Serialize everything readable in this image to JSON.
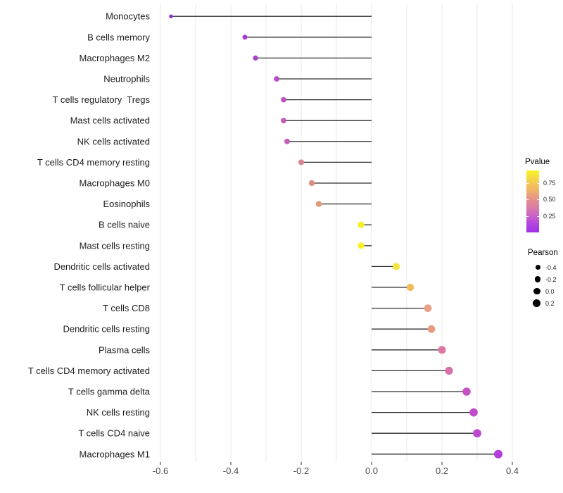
{
  "chart_data": {
    "type": "lollipop",
    "orientation": "horizontal",
    "title": "",
    "xlabel": "",
    "ylabel": "",
    "xlim": [
      -0.616,
      0.424
    ],
    "x_ticks": [
      -0.6,
      -0.4,
      -0.2,
      0.0,
      0.2,
      0.4
    ],
    "x_tick_labels": [
      "-0.6",
      "-0.4",
      "-0.2",
      "0.0",
      "0.2",
      "0.4"
    ],
    "gridlines": {
      "vertical_step": 0.1,
      "from": -0.6,
      "to": 0.4,
      "color": "#eaeaea",
      "horizontal": false
    },
    "stem_color": "#2e2e2e",
    "points": [
      {
        "label": "Monocytes",
        "pearson": -0.57,
        "pvalue_color": "#8930d8"
      },
      {
        "label": "B cells memory",
        "pearson": -0.36,
        "pvalue_color": "#a53ad2"
      },
      {
        "label": "Macrophages M2",
        "pearson": -0.33,
        "pvalue_color": "#ab40cf"
      },
      {
        "label": "Neutrophils",
        "pearson": -0.27,
        "pvalue_color": "#bc4ec5"
      },
      {
        "label": "T cells regulatory  Tregs",
        "pearson": -0.25,
        "pvalue_color": "#c154c0"
      },
      {
        "label": "Mast cells activated",
        "pearson": -0.25,
        "pvalue_color": "#c45abc"
      },
      {
        "label": "NK cells activated",
        "pearson": -0.24,
        "pvalue_color": "#c65fb9"
      },
      {
        "label": "T cells CD4 memory resting",
        "pearson": -0.2,
        "pvalue_color": "#d8868f"
      },
      {
        "label": "Macrophages M0",
        "pearson": -0.17,
        "pvalue_color": "#dd907f"
      },
      {
        "label": "Eosinophils",
        "pearson": -0.15,
        "pvalue_color": "#e09a7c"
      },
      {
        "label": "B cells naive",
        "pearson": -0.03,
        "pvalue_color": "#f6ee2c"
      },
      {
        "label": "Mast cells resting",
        "pearson": -0.03,
        "pvalue_color": "#f7f02a"
      },
      {
        "label": "Dendritic cells activated",
        "pearson": 0.07,
        "pvalue_color": "#f5e33c"
      },
      {
        "label": "T cells follicular helper",
        "pearson": 0.11,
        "pvalue_color": "#f0bd5c"
      },
      {
        "label": "T cells CD8",
        "pearson": 0.16,
        "pvalue_color": "#e7a183"
      },
      {
        "label": "Dendritic cells resting",
        "pearson": 0.17,
        "pvalue_color": "#e69c80"
      },
      {
        "label": "Plasma cells",
        "pearson": 0.2,
        "pvalue_color": "#da79a2"
      },
      {
        "label": "T cells CD4 memory activated",
        "pearson": 0.22,
        "pvalue_color": "#d670aa"
      },
      {
        "label": "T cells gamma delta",
        "pearson": 0.27,
        "pvalue_color": "#c653c3"
      },
      {
        "label": "NK cells resting",
        "pearson": 0.29,
        "pvalue_color": "#c04ecb"
      },
      {
        "label": "T cells CD4 naive",
        "pearson": 0.3,
        "pvalue_color": "#bd49ce"
      },
      {
        "label": "Macrophages M1",
        "pearson": 0.36,
        "pvalue_color": "#b33ed9"
      }
    ],
    "legends": {
      "pvalue": {
        "title": "Pvalue",
        "gradient_top_to_bottom": [
          "#f8f325",
          "#f0b26c",
          "#dd7fa3",
          "#9d30e8"
        ],
        "ticks": [
          {
            "label": "0.75",
            "pos_pct": 20.7
          },
          {
            "label": "0.50",
            "pos_pct": 47.1
          },
          {
            "label": "0.25",
            "pos_pct": 73.6
          }
        ]
      },
      "pearson": {
        "title": "Pearson",
        "dot_color": "#000000",
        "items": [
          {
            "label": "-0.4",
            "value": -0.4
          },
          {
            "label": "-0.2",
            "value": -0.2
          },
          {
            "label": "0.0",
            "value": 0.0
          },
          {
            "label": "0.2",
            "value": 0.2
          }
        ]
      }
    }
  }
}
